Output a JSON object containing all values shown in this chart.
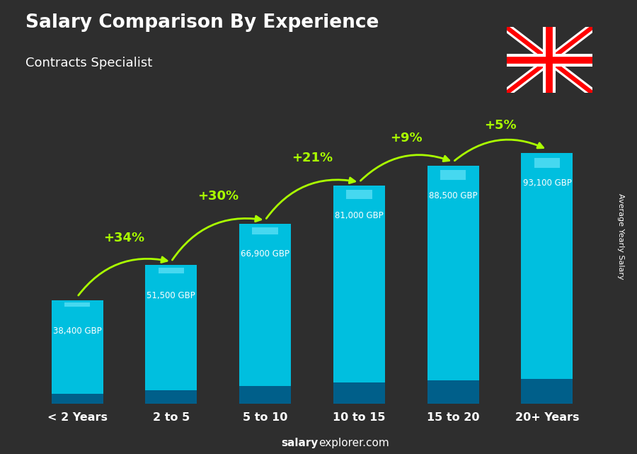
{
  "title": "Salary Comparison By Experience",
  "subtitle": "Contracts Specialist",
  "categories": [
    "< 2 Years",
    "2 to 5",
    "5 to 10",
    "10 to 15",
    "15 to 20",
    "20+ Years"
  ],
  "values": [
    38400,
    51500,
    66900,
    81000,
    88500,
    93100
  ],
  "labels": [
    "38,400 GBP",
    "51,500 GBP",
    "66,900 GBP",
    "81,000 GBP",
    "88,500 GBP",
    "93,100 GBP"
  ],
  "pct_changes": [
    "+34%",
    "+30%",
    "+21%",
    "+9%",
    "+5%"
  ],
  "bar_color": "#00bfdf",
  "bar_dark": "#005f8a",
  "bar_highlight": "#80eeff",
  "bg_color": "#2e2e2e",
  "title_color": "#ffffff",
  "subtitle_color": "#ffffff",
  "label_color": "#ffffff",
  "pct_color": "#aaff00",
  "xtick_color": "#ffffff",
  "watermark_bold": "salary",
  "watermark_normal": "explorer.com",
  "right_label": "Average Yearly Salary",
  "ylim_max": 112000,
  "figsize": [
    9.0,
    6.41
  ],
  "dpi": 100
}
